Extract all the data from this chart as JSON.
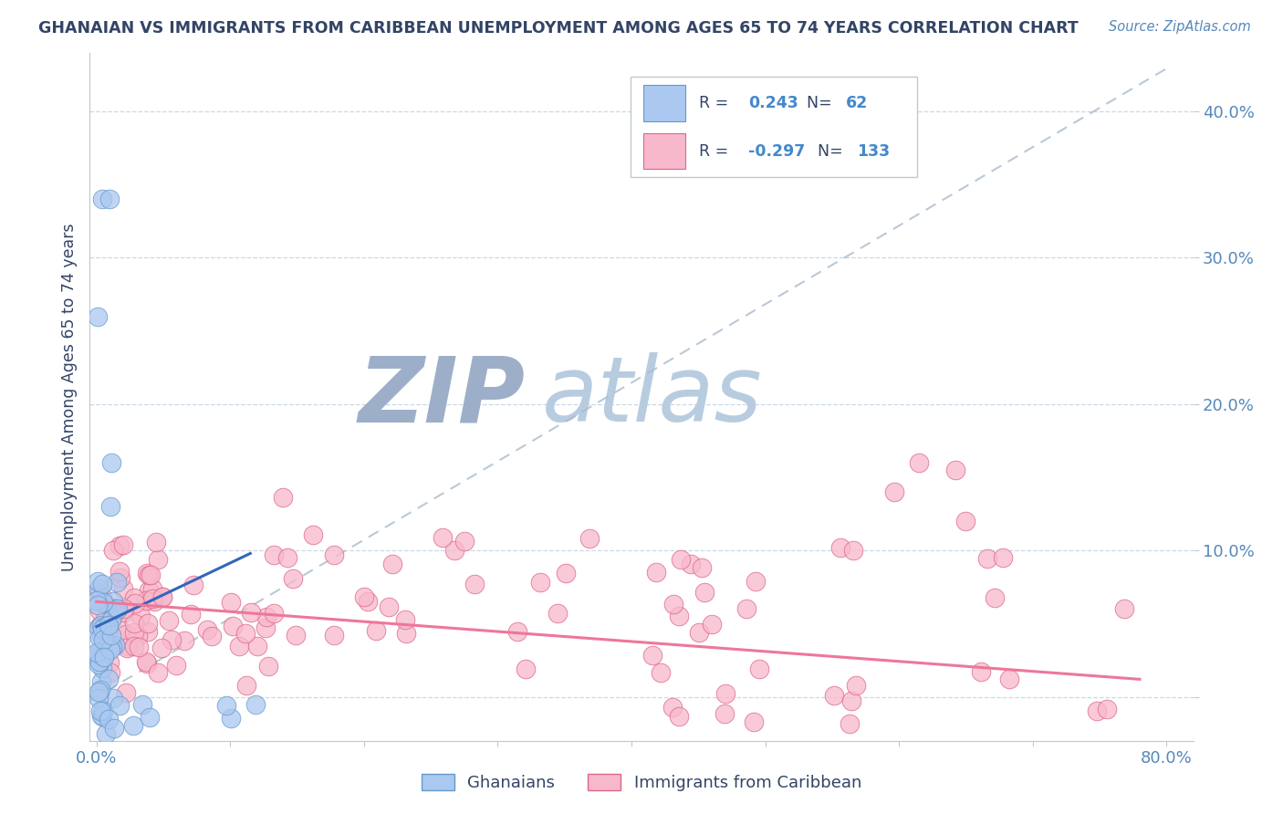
{
  "title": "GHANAIAN VS IMMIGRANTS FROM CARIBBEAN UNEMPLOYMENT AMONG AGES 65 TO 74 YEARS CORRELATION CHART",
  "source_text": "Source: ZipAtlas.com",
  "ylabel": "Unemployment Among Ages 65 to 74 years",
  "xlim": [
    -0.005,
    0.82
  ],
  "ylim": [
    -0.03,
    0.44
  ],
  "group1_color": "#aac8f0",
  "group1_edge_color": "#6699cc",
  "group2_color": "#f8b8cc",
  "group2_edge_color": "#dd6688",
  "trend1_color": "#3366bb",
  "trend2_color": "#ee7799",
  "grid_color": "#c8d8e8",
  "watermark_color_zip": "#c0cce0",
  "watermark_color_atlas": "#c8d8e8",
  "legend_R1": "0.243",
  "legend_N1": "62",
  "legend_R2": "-0.297",
  "legend_N2": "133",
  "legend_label1": "Ghanaians",
  "legend_label2": "Immigrants from Caribbean",
  "title_color": "#334466",
  "axis_color": "#5588bb",
  "legend_text_color": "#334466",
  "legend_val_color": "#4488cc"
}
